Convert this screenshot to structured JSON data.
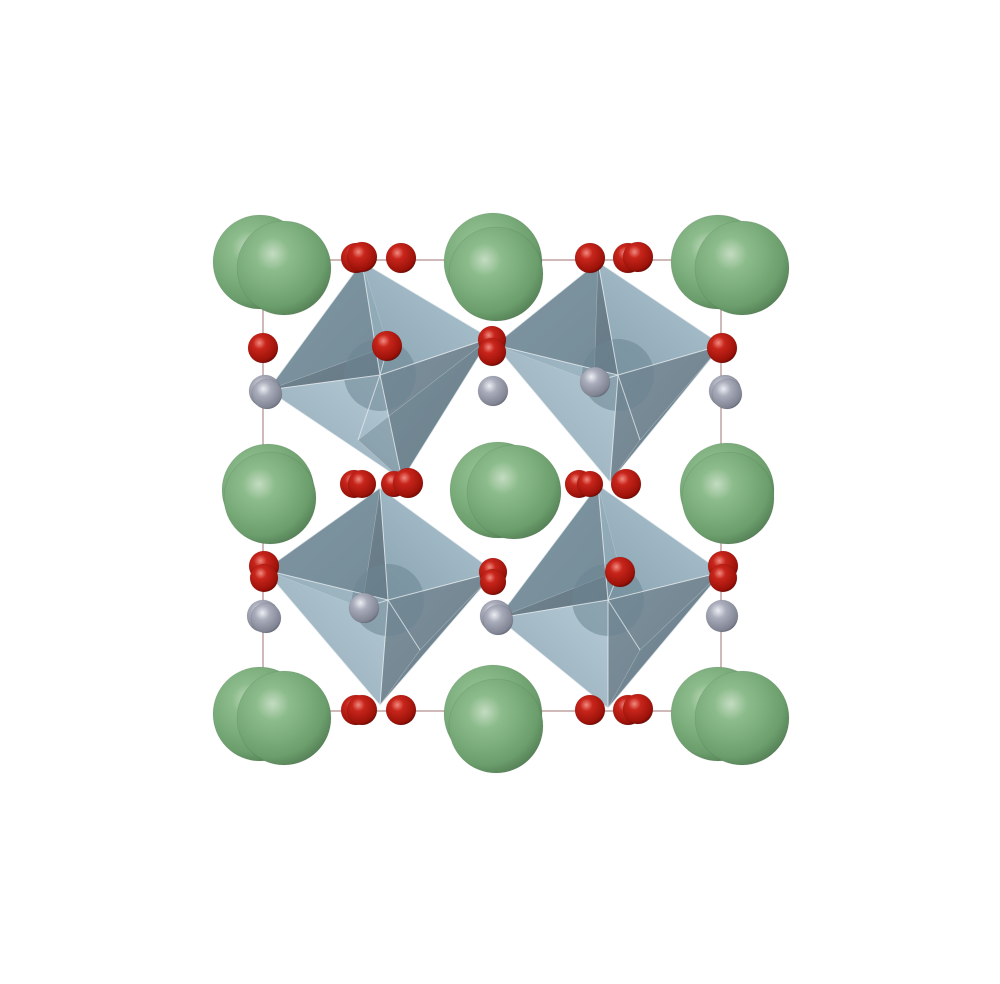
{
  "structure": {
    "colors": {
      "large_cation": "#7fae7f",
      "oxygen": "#b3150c",
      "metal": "#a4a7b4",
      "octahedron": "#7f98a6",
      "cell_edge": "#b08a8a",
      "bond": "#e8ecf0"
    }
  }
}
